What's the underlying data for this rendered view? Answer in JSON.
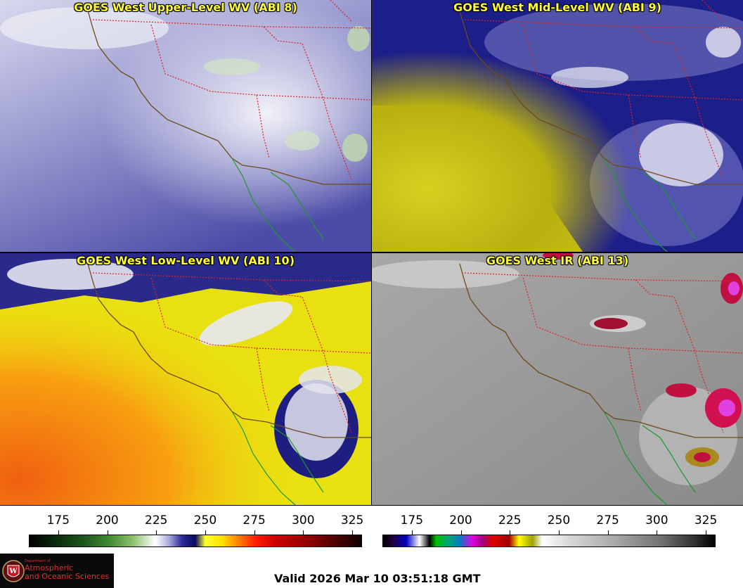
{
  "panels": [
    {
      "title": "GOES West Upper-Level WV (ABI 8)",
      "style": "upper"
    },
    {
      "title": "GOES West Mid-Level WV (ABI 9)",
      "style": "mid"
    },
    {
      "title": "GOES West Low-Level WV (ABI 10)",
      "style": "low"
    },
    {
      "title": "GOES West IR (ABI 13)",
      "style": "ir"
    }
  ],
  "colorbars": {
    "wv": {
      "ticks": [
        "175",
        "200",
        "225",
        "250",
        "275",
        "300",
        "325"
      ],
      "range": [
        160,
        330
      ]
    },
    "ir": {
      "ticks": [
        "175",
        "200",
        "225",
        "250",
        "275",
        "300",
        "325"
      ],
      "range": [
        160,
        330
      ]
    }
  },
  "logo": {
    "dept_small": "Department of",
    "line1": "Atmospheric",
    "line2": "and Oceanic Sciences",
    "emblem": "W"
  },
  "valid_text": "Valid 2026 Mar 10 03:51:18 GMT",
  "colors": {
    "coast": "#6b4a1a",
    "state_border": "#dd2222",
    "baja_coast": "#1a9a2a",
    "title": "#ffff33"
  }
}
